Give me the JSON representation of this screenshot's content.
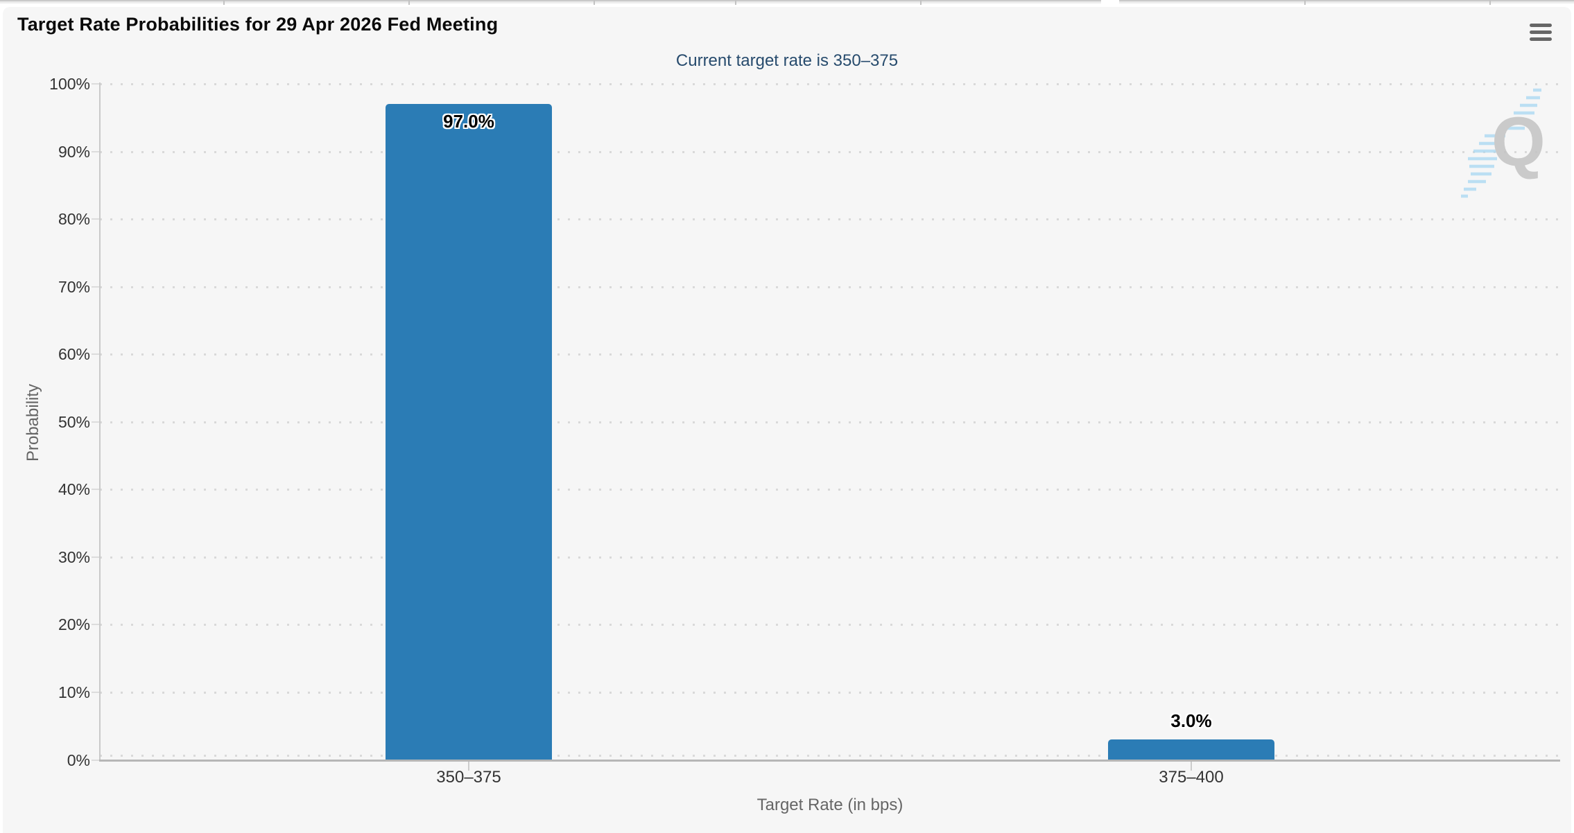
{
  "page": {
    "menu_tooltip": "Chart context menu"
  },
  "chart_data": {
    "type": "bar",
    "title": "Target Rate Probabilities for 29 Apr 2026 Fed Meeting",
    "subtitle": "Current target rate is 350–375",
    "xlabel": "Target Rate (in bps)",
    "ylabel": "Probability",
    "categories": [
      "350–375",
      "375–400"
    ],
    "values": [
      97.0,
      3.0
    ],
    "value_labels": [
      "97.0%",
      "3.0%"
    ],
    "ylim": [
      0,
      100
    ],
    "ytick_labels": [
      "100%",
      "90%",
      "80%",
      "70%",
      "60%",
      "50%",
      "40%",
      "30%",
      "20%",
      "10%",
      "0%"
    ],
    "grid": "horizontal-dotted",
    "legend": "none",
    "bar_color": "#2b7cb5",
    "watermark_letter": "Q"
  }
}
